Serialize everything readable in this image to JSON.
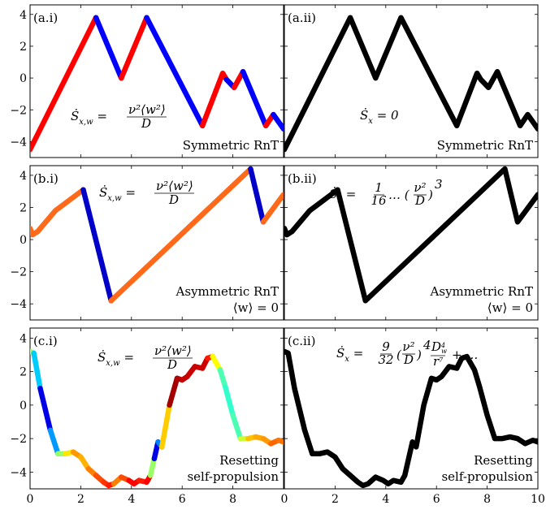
{
  "chart_data": [
    {
      "id": "a.i",
      "type": "line",
      "panel_label": "(a.i)",
      "equation": "Ṡx,w = ν²⟨w²⟩/D",
      "caption_lines": [
        "Symmetric RnT"
      ],
      "xlim": [
        0,
        10
      ],
      "ylim": [
        -5,
        4.6
      ],
      "series": [
        {
          "color": "#ff0000",
          "x": [
            0,
            2.6
          ],
          "y": [
            -4.5,
            3.8
          ]
        },
        {
          "color": "#0000ff",
          "x": [
            2.6,
            3.6
          ],
          "y": [
            3.8,
            0.0
          ]
        },
        {
          "color": "#ff0000",
          "x": [
            3.6,
            4.6
          ],
          "y": [
            0.0,
            3.8
          ]
        },
        {
          "color": "#0000ff",
          "x": [
            4.6,
            6.8
          ],
          "y": [
            3.8,
            -3.0
          ]
        },
        {
          "color": "#ff0000",
          "x": [
            6.8,
            7.6,
            7.75
          ],
          "y": [
            -3.0,
            0.3,
            -0.1
          ]
        },
        {
          "color": "#0000ff",
          "x": [
            7.75,
            8.05
          ],
          "y": [
            -0.1,
            -0.6
          ]
        },
        {
          "color": "#ff0000",
          "x": [
            8.05,
            8.4
          ],
          "y": [
            -0.6,
            0.4
          ]
        },
        {
          "color": "#0000ff",
          "x": [
            8.4,
            9.3
          ],
          "y": [
            0.4,
            -3.0
          ]
        },
        {
          "color": "#ff0000",
          "x": [
            9.3,
            9.6
          ],
          "y": [
            -3.0,
            -2.3
          ]
        },
        {
          "color": "#0000ff",
          "x": [
            9.6,
            10.0
          ],
          "y": [
            -2.3,
            -3.2
          ]
        }
      ]
    },
    {
      "id": "a.ii",
      "type": "line",
      "panel_label": "(a.ii)",
      "equation": "Ṡx = 0",
      "caption_lines": [
        "Symmetric RnT"
      ],
      "xlim": [
        0,
        10
      ],
      "ylim": [
        -5,
        4.6
      ],
      "series": [
        {
          "color": "#000000",
          "x": [
            0,
            2.6,
            3.6,
            4.6,
            6.8,
            7.6,
            7.75,
            8.05,
            8.4,
            9.3,
            9.6,
            10.0
          ],
          "y": [
            -4.5,
            3.8,
            0.0,
            3.8,
            -3.0,
            0.3,
            -0.1,
            -0.6,
            0.4,
            -3.0,
            -2.3,
            -3.2
          ]
        }
      ]
    },
    {
      "id": "b.i",
      "type": "line",
      "panel_label": "(b.i)",
      "equation": "Ṡx,w = ν²⟨w²⟩/D",
      "caption_lines": [
        "Asymmetric RnT",
        "⟨w⟩ = 0"
      ],
      "xlim": [
        0,
        10
      ],
      "ylim": [
        -5,
        4.6
      ],
      "series": [
        {
          "color": "#ff6a1a",
          "x": [
            0,
            0.1,
            0.3,
            1.0,
            2.1
          ],
          "y": [
            0.7,
            0.3,
            0.5,
            1.8,
            3.1
          ]
        },
        {
          "color": "#0000c8",
          "x": [
            2.1,
            3.2
          ],
          "y": [
            3.1,
            -3.8
          ]
        },
        {
          "color": "#ff6a1a",
          "x": [
            3.2,
            8.7
          ],
          "y": [
            -3.8,
            4.4
          ]
        },
        {
          "color": "#0000c8",
          "x": [
            8.7,
            9.2
          ],
          "y": [
            4.4,
            1.1
          ]
        },
        {
          "color": "#ff6a1a",
          "x": [
            9.2,
            10.0
          ],
          "y": [
            1.1,
            2.8
          ]
        }
      ]
    },
    {
      "id": "b.ii",
      "type": "line",
      "panel_label": "(b.ii)",
      "equation": "Ṡx = 1/16 … (ν²/D)³",
      "caption_lines": [
        "Asymmetric RnT",
        "⟨w⟩ = 0"
      ],
      "xlim": [
        0,
        10
      ],
      "ylim": [
        -5,
        4.6
      ],
      "series": [
        {
          "color": "#000000",
          "x": [
            0,
            0.1,
            0.3,
            1.0,
            2.1,
            3.2,
            8.7,
            9.2,
            10.0
          ],
          "y": [
            0.7,
            0.3,
            0.5,
            1.8,
            3.1,
            -3.8,
            4.4,
            1.1,
            2.8
          ]
        }
      ]
    },
    {
      "id": "c.i",
      "type": "line",
      "panel_label": "(c.i)",
      "equation": "Ṡx,w = ν²⟨w²⟩/D",
      "caption_lines": [
        "Resetting",
        "self-propulsion"
      ],
      "xlim": [
        0,
        10
      ],
      "ylim": [
        -5,
        4.6
      ],
      "gradient": true,
      "series": [
        {
          "x": [
            0,
            0.15,
            0.4,
            0.8,
            1.1,
            1.4,
            1.7,
            2.0,
            2.3,
            2.6,
            2.9,
            3.1,
            3.3,
            3.6,
            3.9,
            4.1,
            4.3,
            4.6,
            4.75,
            4.9,
            5.05,
            5.2,
            5.5,
            5.8,
            6.0,
            6.2,
            6.5,
            6.8,
            7.0,
            7.2,
            7.5,
            7.7,
            8.0,
            8.3,
            8.6,
            8.9,
            9.2,
            9.5,
            9.8,
            10.0
          ],
          "y": [
            3.2,
            3.1,
            1.0,
            -1.5,
            -2.9,
            -2.9,
            -2.8,
            -3.1,
            -3.8,
            -4.2,
            -4.6,
            -4.8,
            -4.7,
            -4.3,
            -4.5,
            -4.7,
            -4.5,
            -4.6,
            -4.2,
            -3.2,
            -2.2,
            -2.5,
            0.0,
            1.6,
            1.5,
            1.7,
            2.3,
            2.2,
            2.8,
            2.9,
            2.1,
            1.1,
            -0.6,
            -2.0,
            -2.0,
            -1.9,
            -2.0,
            -2.3,
            -2.1,
            -2.2
          ],
          "c": [
            0.5,
            0.55,
            0.1,
            0.1,
            0.45,
            0.6,
            0.7,
            0.75,
            0.65,
            0.85,
            0.75,
            0.9,
            0.8,
            0.7,
            0.9,
            0.85,
            0.9,
            0.8,
            0.95,
            0.1,
            0.1,
            0.4,
            0.95,
            0.98,
            0.92,
            0.95,
            0.9,
            0.95,
            0.9,
            0.8,
            0.45,
            0.45,
            0.4,
            0.5,
            0.65,
            0.72,
            0.7,
            0.75,
            0.8,
            0.72
          ]
        }
      ]
    },
    {
      "id": "c.ii",
      "type": "line",
      "panel_label": "(c.ii)",
      "equation": "Ṡx = 9/32 (ν²/D)⁴ D⁴w/r⁷ + …",
      "caption_lines": [
        "Resetting",
        "self-propulsion"
      ],
      "xlim": [
        0,
        10
      ],
      "ylim": [
        -5,
        4.6
      ],
      "series": [
        {
          "color": "#000000",
          "x": [
            0,
            0.15,
            0.4,
            0.8,
            1.1,
            1.4,
            1.7,
            2.0,
            2.3,
            2.6,
            2.9,
            3.1,
            3.3,
            3.6,
            3.9,
            4.1,
            4.3,
            4.6,
            4.75,
            4.9,
            5.05,
            5.2,
            5.5,
            5.8,
            6.0,
            6.2,
            6.5,
            6.8,
            7.0,
            7.2,
            7.5,
            7.7,
            8.0,
            8.3,
            8.6,
            8.9,
            9.2,
            9.5,
            9.8,
            10.0
          ],
          "y": [
            3.2,
            3.1,
            1.0,
            -1.5,
            -2.9,
            -2.9,
            -2.8,
            -3.1,
            -3.8,
            -4.2,
            -4.6,
            -4.8,
            -4.7,
            -4.3,
            -4.5,
            -4.7,
            -4.5,
            -4.6,
            -4.2,
            -3.2,
            -2.2,
            -2.5,
            0.0,
            1.6,
            1.5,
            1.7,
            2.3,
            2.2,
            2.8,
            2.9,
            2.1,
            1.1,
            -0.6,
            -2.0,
            -2.0,
            -1.9,
            -2.0,
            -2.3,
            -2.1,
            -2.2
          ]
        }
      ]
    }
  ],
  "axes": {
    "y_ticks": [
      4,
      2,
      0,
      -2,
      -4
    ],
    "y_tick_labels": [
      "4",
      "2",
      "0",
      "−2",
      "−4"
    ],
    "x_ticks_left": [
      0,
      2,
      4,
      6,
      8
    ],
    "x_tick_labels_left": [
      "0",
      "2",
      "4",
      "6",
      "8"
    ],
    "x_ticks_right": [
      0,
      2,
      4,
      6,
      8,
      10
    ],
    "x_tick_labels_right": [
      "0",
      "2",
      "4",
      "6",
      "8",
      "10"
    ]
  }
}
